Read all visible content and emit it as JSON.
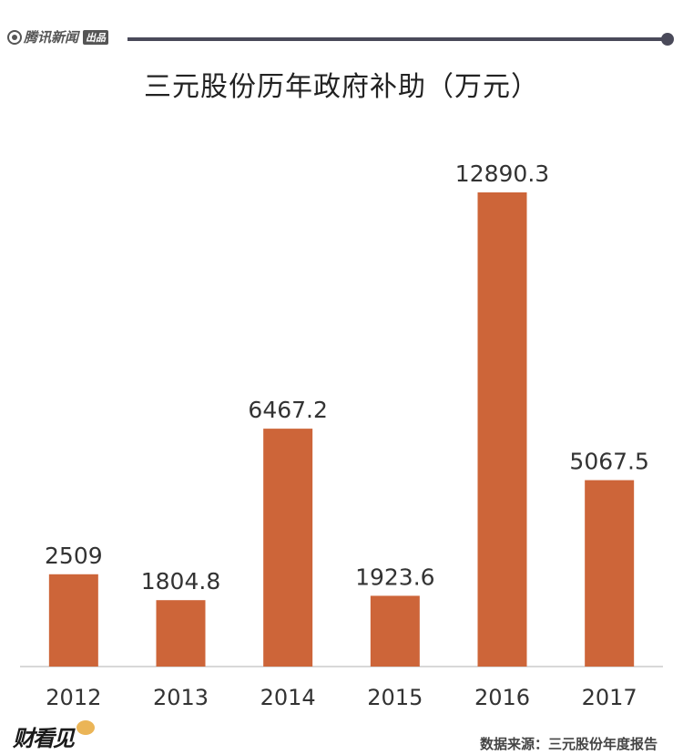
{
  "header": {
    "brand": "腾讯新闻",
    "brand_tag": "出品"
  },
  "title": "三元股份历年政府补助（万元）",
  "chart_data": {
    "type": "bar",
    "title": "三元股份历年政府补助（万元）",
    "categories": [
      "2012",
      "2013",
      "2014",
      "2015",
      "2016",
      "2017"
    ],
    "values": [
      2509,
      1804.8,
      6467.2,
      1923.6,
      12890.3,
      5067.5
    ],
    "value_labels": [
      "2509",
      "1804.8",
      "6467.2",
      "1923.6",
      "12890.3",
      "5067.5"
    ],
    "xlabel": "",
    "ylabel": "",
    "ylim": [
      0,
      12890.3
    ],
    "grid": false,
    "legend": "none",
    "bar_color": "#cd6539"
  },
  "footer": {
    "logo": "财看见",
    "source": "数据来源：三元股份年度报告"
  },
  "colors": {
    "bar": "#cd6539",
    "header_line": "#4a4a5a",
    "axis": "#cccccc",
    "text": "#333333"
  }
}
